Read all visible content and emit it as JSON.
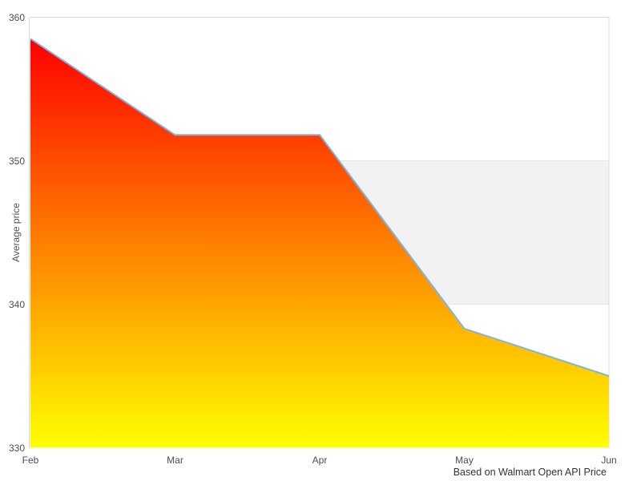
{
  "chart_data": {
    "type": "area",
    "title": "",
    "xlabel": "",
    "ylabel": "Average price",
    "categories": [
      "Feb",
      "Mar",
      "Apr",
      "May",
      "Jun"
    ],
    "values": [
      358.5,
      351.8,
      351.8,
      338.3,
      335.0
    ],
    "series": [
      {
        "name": "Average price",
        "values": [
          358.5,
          351.8,
          351.8,
          338.3,
          335.0
        ]
      }
    ],
    "ylim": [
      330,
      360
    ],
    "yticks": [
      330,
      340,
      350,
      360
    ],
    "grid": "horizontal-only",
    "legend": "none",
    "plot_band": {
      "from": 340,
      "to": 350,
      "color": "#f2f2f2"
    },
    "caption": "Based on Walmart Open API Price",
    "colors": {
      "line": "#7cb5ec",
      "area_gradient_top": "#ff0000",
      "area_gradient_bottom": "#ffff00",
      "axis_border": "#d9d9d9",
      "gridline": "#e6e6e6",
      "tick_text": "#4d4d4d",
      "axis_title_text": "#555555",
      "caption_text": "#333333",
      "background": "#ffffff"
    }
  }
}
